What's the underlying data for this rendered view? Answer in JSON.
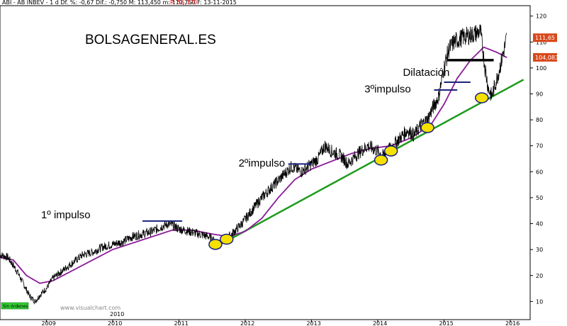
{
  "header": {
    "info": "ABI - AB INBEV - 1 d  Df. %: -0,67  Dif.: -0,750  M: 113,450  m: 110,750  F: 13-11-2015",
    "p_label": "P: 56,370"
  },
  "brand": "BOLSAGENERAL.ES",
  "watermark": "www.visualchart.com",
  "sin_ordenes": "Sin órdenes",
  "inner_year": "2010",
  "chart_data": {
    "type": "line",
    "x_ticks": [
      "2009",
      "2010",
      "2011",
      "2012",
      "2013",
      "2014",
      "2015",
      "2016"
    ],
    "y_ticks": [
      10,
      20,
      30,
      40,
      50,
      60,
      70,
      80,
      90,
      100,
      110,
      120
    ],
    "ylim": [
      3,
      124
    ],
    "xlim": [
      2008.3,
      2016.3
    ],
    "price_anchors": [
      [
        2008.3,
        28
      ],
      [
        2008.42,
        27
      ],
      [
        2008.55,
        22
      ],
      [
        2008.67,
        16
      ],
      [
        2008.75,
        12
      ],
      [
        2008.83,
        10
      ],
      [
        2008.92,
        13
      ],
      [
        2009.0,
        15
      ],
      [
        2009.1,
        19
      ],
      [
        2009.25,
        22
      ],
      [
        2009.4,
        25
      ],
      [
        2009.55,
        28
      ],
      [
        2009.7,
        29
      ],
      [
        2009.85,
        31
      ],
      [
        2010.0,
        32
      ],
      [
        2010.15,
        33
      ],
      [
        2010.3,
        35
      ],
      [
        2010.45,
        36
      ],
      [
        2010.6,
        37
      ],
      [
        2010.75,
        39
      ],
      [
        2010.85,
        40
      ],
      [
        2011.0,
        38
      ],
      [
        2011.15,
        37
      ],
      [
        2011.3,
        36
      ],
      [
        2011.45,
        35
      ],
      [
        2011.55,
        33
      ],
      [
        2011.62,
        32
      ],
      [
        2011.7,
        34
      ],
      [
        2011.8,
        36
      ],
      [
        2011.95,
        40
      ],
      [
        2012.1,
        45
      ],
      [
        2012.25,
        50
      ],
      [
        2012.4,
        54
      ],
      [
        2012.55,
        58
      ],
      [
        2012.7,
        62
      ],
      [
        2012.85,
        60
      ],
      [
        2013.0,
        63
      ],
      [
        2013.1,
        65
      ],
      [
        2013.2,
        70
      ],
      [
        2013.3,
        68
      ],
      [
        2013.45,
        66
      ],
      [
        2013.55,
        63
      ],
      [
        2013.7,
        67
      ],
      [
        2013.85,
        70
      ],
      [
        2014.0,
        68
      ],
      [
        2014.08,
        66
      ],
      [
        2014.15,
        68
      ],
      [
        2014.3,
        72
      ],
      [
        2014.45,
        76
      ],
      [
        2014.55,
        74
      ],
      [
        2014.65,
        78
      ],
      [
        2014.75,
        80
      ],
      [
        2014.82,
        84
      ],
      [
        2014.92,
        89
      ],
      [
        2015.0,
        100
      ],
      [
        2015.07,
        107
      ],
      [
        2015.15,
        110
      ],
      [
        2015.3,
        112
      ],
      [
        2015.45,
        113
      ],
      [
        2015.55,
        114
      ],
      [
        2015.62,
        100
      ],
      [
        2015.67,
        92
      ],
      [
        2015.72,
        89
      ],
      [
        2015.8,
        96
      ],
      [
        2015.88,
        104
      ],
      [
        2015.95,
        112
      ]
    ],
    "ma_anchors": [
      [
        2008.3,
        27
      ],
      [
        2008.5,
        26
      ],
      [
        2008.7,
        20
      ],
      [
        2008.9,
        17
      ],
      [
        2009.1,
        18
      ],
      [
        2009.4,
        22
      ],
      [
        2009.7,
        26
      ],
      [
        2010.0,
        30
      ],
      [
        2010.3,
        32.5
      ],
      [
        2010.6,
        35
      ],
      [
        2010.9,
        37.5
      ],
      [
        2011.2,
        37.5
      ],
      [
        2011.5,
        36
      ],
      [
        2011.75,
        35
      ],
      [
        2012.0,
        37
      ],
      [
        2012.25,
        42
      ],
      [
        2012.5,
        50
      ],
      [
        2012.75,
        57
      ],
      [
        2013.0,
        61
      ],
      [
        2013.3,
        64
      ],
      [
        2013.6,
        67
      ],
      [
        2013.9,
        69
      ],
      [
        2014.2,
        70
      ],
      [
        2014.5,
        73
      ],
      [
        2014.8,
        78
      ],
      [
        2015.0,
        86
      ],
      [
        2015.2,
        96
      ],
      [
        2015.4,
        103
      ],
      [
        2015.6,
        108
      ],
      [
        2015.8,
        106
      ],
      [
        2015.95,
        104
      ]
    ],
    "trendline": {
      "from": [
        2011.7,
        33
      ],
      "to": [
        2016.2,
        95.5
      ]
    },
    "resistance": {
      "from": [
        2015.05,
        103
      ],
      "to": [
        2015.75,
        103
      ]
    },
    "support_circles": [
      {
        "x": 2011.55,
        "y": 32
      },
      {
        "x": 2011.72,
        "y": 34
      },
      {
        "x": 2014.05,
        "y": 64.5
      },
      {
        "x": 2014.2,
        "y": 68
      },
      {
        "x": 2014.75,
        "y": 77
      },
      {
        "x": 2015.57,
        "y": 88.5
      }
    ],
    "annotations": [
      {
        "text": "1º impulso",
        "x": 2008.92,
        "y": 42,
        "line": {
          "from": [
            2010.45,
            41
          ],
          "to": [
            2011.05,
            41
          ]
        }
      },
      {
        "text": "2ºimpulso",
        "x": 2011.9,
        "y": 62,
        "line": {
          "from": [
            2012.65,
            63
          ],
          "to": [
            2013.0,
            63
          ]
        }
      },
      {
        "text": "3ºimpulso",
        "x": 2013.8,
        "y": 90.5,
        "line": {
          "from": [
            2014.85,
            91.5
          ],
          "to": [
            2015.2,
            91.5
          ]
        }
      },
      {
        "text": "Dilatación",
        "x": 2014.38,
        "y": 97,
        "line": {
          "from": [
            2015.0,
            94.5
          ],
          "to": [
            2015.4,
            94.5
          ]
        }
      }
    ],
    "price_badges": [
      {
        "value": 104.083,
        "label": "104,083"
      },
      {
        "value": 111.65,
        "label": "111,65"
      }
    ],
    "colors": {
      "price": "#000000",
      "moving_average": "#8b1a9a",
      "trendline": "#1e9b1e",
      "annotation_lines": "#1a237e",
      "circle_fill": "#f5e000",
      "circle_stroke": "#1a237e",
      "badge": "#d9481a"
    }
  }
}
